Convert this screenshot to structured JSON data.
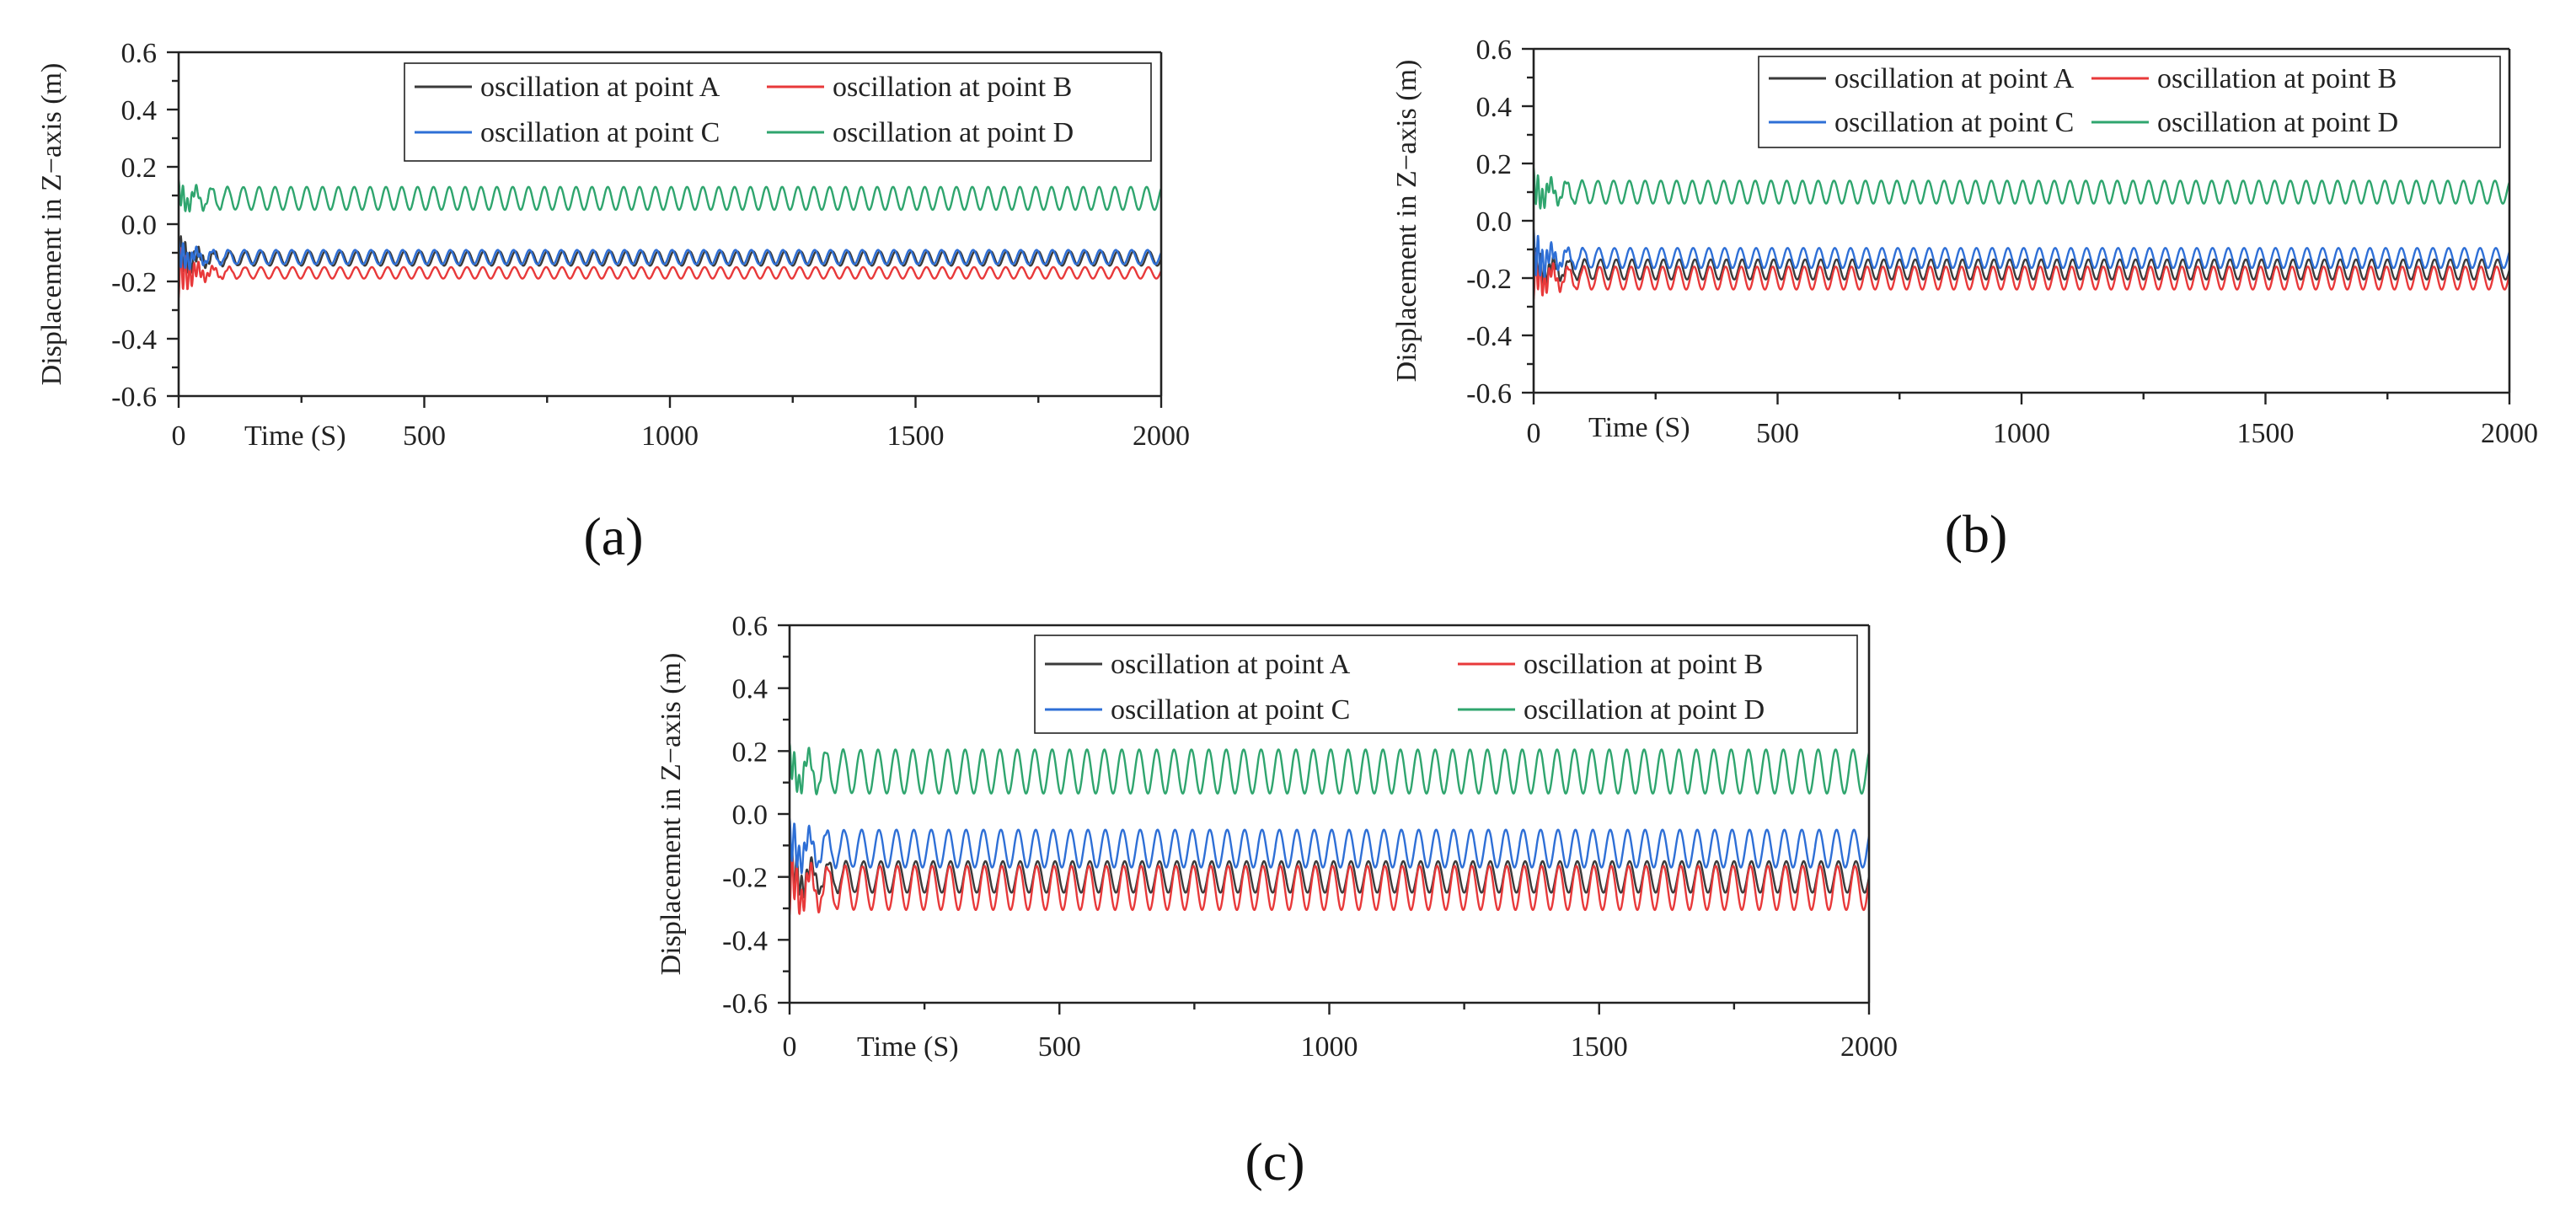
{
  "figure": {
    "labels": [
      "(a)",
      "(b)",
      "(c)"
    ]
  },
  "chart_data": [
    {
      "type": "line",
      "panel": "(a)",
      "xlabel": "Time (S)",
      "ylabel": "Displacement in Z−axis (m)",
      "xlim": [
        0,
        2000
      ],
      "ylim": [
        -0.6,
        0.6
      ],
      "xticks": [
        0,
        500,
        1000,
        1500,
        2000
      ],
      "yticks": [
        -0.6,
        -0.4,
        -0.2,
        0.0,
        0.2,
        0.4,
        0.6
      ],
      "xtick_labels": [
        "0",
        "500",
        "1000",
        "1500",
        "2000"
      ],
      "ytick_labels": [
        "-0.6",
        "-0.4",
        "-0.2",
        "0.0",
        "0.2",
        "0.4",
        "0.6"
      ],
      "legend_position": "top-right",
      "oscillation_cycles": 62,
      "series": [
        {
          "name": "oscillation at point A",
          "color": "#3a3a3a",
          "mean": -0.12,
          "amplitude": 0.025,
          "start_value": -0.2
        },
        {
          "name": "oscillation at point B",
          "color": "#e8393a",
          "mean": -0.17,
          "amplitude": 0.02,
          "start_value": -0.26
        },
        {
          "name": "oscillation at point C",
          "color": "#2e6fd6",
          "mean": -0.115,
          "amplitude": 0.025,
          "start_value": -0.06
        },
        {
          "name": "oscillation at point D",
          "color": "#2fa56e",
          "mean": 0.09,
          "amplitude": 0.04,
          "start_value": 0.14
        }
      ]
    },
    {
      "type": "line",
      "panel": "(b)",
      "xlabel": "Time (S)",
      "ylabel": "Displacement in Z−axis (m)",
      "xlim": [
        0,
        2000
      ],
      "ylim": [
        -0.6,
        0.6
      ],
      "xticks": [
        0,
        500,
        1000,
        1500,
        2000
      ],
      "yticks": [
        -0.6,
        -0.4,
        -0.2,
        0.0,
        0.2,
        0.4,
        0.6
      ],
      "xtick_labels": [
        "0",
        "500",
        "1000",
        "1500",
        "2000"
      ],
      "ytick_labels": [
        "-0.6",
        "-0.4",
        "-0.2",
        "0.0",
        "0.2",
        "0.4",
        "0.6"
      ],
      "legend_position": "top-right",
      "oscillation_cycles": 62,
      "series": [
        {
          "name": "oscillation at point A",
          "color": "#3a3a3a",
          "mean": -0.17,
          "amplitude": 0.035,
          "start_value": -0.24
        },
        {
          "name": "oscillation at point B",
          "color": "#e8393a",
          "mean": -0.2,
          "amplitude": 0.04,
          "start_value": -0.28
        },
        {
          "name": "oscillation at point C",
          "color": "#2e6fd6",
          "mean": -0.13,
          "amplitude": 0.035,
          "start_value": -0.04
        },
        {
          "name": "oscillation at point D",
          "color": "#2fa56e",
          "mean": 0.1,
          "amplitude": 0.04,
          "start_value": 0.17
        }
      ]
    },
    {
      "type": "line",
      "panel": "(c)",
      "xlabel": "Time (S)",
      "ylabel": "Displacement in Z−axis (m)",
      "xlim": [
        0,
        2000
      ],
      "ylim": [
        -0.6,
        0.6
      ],
      "xticks": [
        0,
        500,
        1000,
        1500,
        2000
      ],
      "yticks": [
        -0.6,
        -0.4,
        -0.2,
        0.0,
        0.2,
        0.4,
        0.6
      ],
      "xtick_labels": [
        "0",
        "500",
        "1000",
        "1500",
        "2000"
      ],
      "ytick_labels": [
        "-0.6",
        "-0.4",
        "-0.2",
        "0.0",
        "0.2",
        "0.4",
        "0.6"
      ],
      "legend_position": "top-right",
      "oscillation_cycles": 62,
      "series": [
        {
          "name": "oscillation at point A",
          "color": "#3a3a3a",
          "mean": -0.2,
          "amplitude": 0.05,
          "start_value": -0.28
        },
        {
          "name": "oscillation at point B",
          "color": "#e8393a",
          "mean": -0.235,
          "amplitude": 0.07,
          "start_value": -0.33
        },
        {
          "name": "oscillation at point C",
          "color": "#2e6fd6",
          "mean": -0.11,
          "amplitude": 0.06,
          "start_value": -0.03
        },
        {
          "name": "oscillation at point D",
          "color": "#2fa56e",
          "mean": 0.135,
          "amplitude": 0.07,
          "start_value": 0.2
        }
      ]
    }
  ]
}
